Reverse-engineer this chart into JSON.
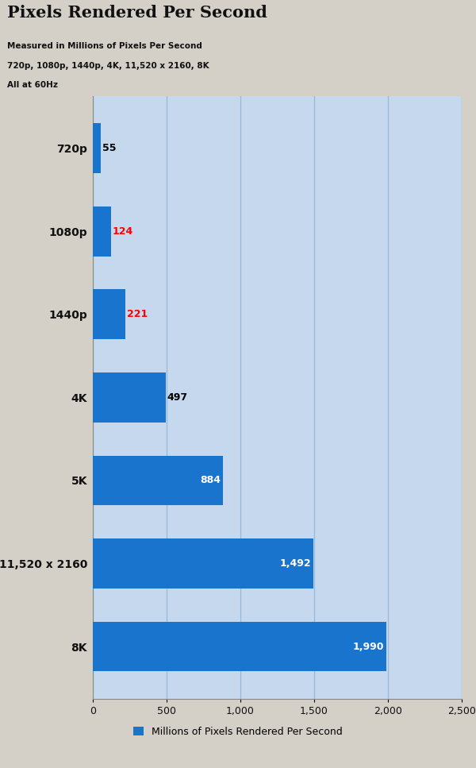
{
  "title": "Pixels Rendered Per Second",
  "subtitle_lines": [
    "Measured in Millions of Pixels Per Second",
    "720p, 1080p, 1440p, 4K, 11,520 x 2160, 8K",
    "All at 60Hz"
  ],
  "categories": [
    "720p",
    "1080p",
    "1440p",
    "4K",
    "5K",
    "11,520 x 2160",
    "8K"
  ],
  "values": [
    55,
    124,
    221,
    497,
    884,
    1492,
    1990
  ],
  "bar_color": "#1874CD",
  "plot_bg_color": "#C5D8EE",
  "fig_bg_color": "#D4D0C8",
  "header_bg_color": "#C8C8C8",
  "label_colors": [
    "#000000",
    "#FF0000",
    "#FF0000",
    "#000000",
    "#FFFFFF",
    "#FFFFFF",
    "#FFFFFF"
  ],
  "xlim": [
    0,
    2500
  ],
  "xticks": [
    0,
    500,
    1000,
    1500,
    2000,
    2500
  ],
  "xtick_labels": [
    "0",
    "500",
    "1,000",
    "1,500",
    "2,000",
    "2,500"
  ],
  "legend_label": "Millions of Pixels Rendered Per Second",
  "legend_color": "#1874CD",
  "grid_color": "#9BB8D4"
}
